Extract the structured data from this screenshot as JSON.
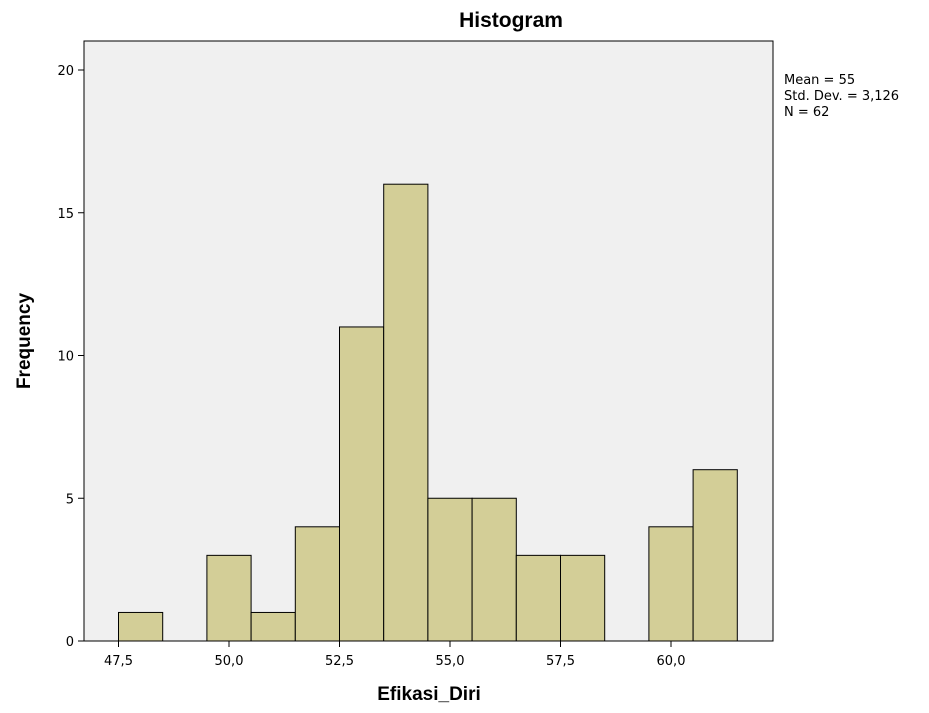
{
  "chart_data": {
    "type": "bar",
    "title": "Histogram",
    "xlabel": "Efikasi_Diri",
    "ylabel": "Frequency",
    "xlim": [
      46.5,
      62.5
    ],
    "ylim": [
      0,
      21
    ],
    "bin_width": 1,
    "bins": [
      {
        "x": 48,
        "count": 1
      },
      {
        "x": 50,
        "count": 3
      },
      {
        "x": 51,
        "count": 1
      },
      {
        "x": 52,
        "count": 4
      },
      {
        "x": 53,
        "count": 11
      },
      {
        "x": 54,
        "count": 16
      },
      {
        "x": 55,
        "count": 5
      },
      {
        "x": 56,
        "count": 5
      },
      {
        "x": 57,
        "count": 3
      },
      {
        "x": 58,
        "count": 3
      },
      {
        "x": 60,
        "count": 4
      },
      {
        "x": 61,
        "count": 6
      }
    ],
    "x_ticks": [
      {
        "value": 47.5,
        "label": "47,5"
      },
      {
        "value": 50.0,
        "label": "50,0"
      },
      {
        "value": 52.5,
        "label": "52,5"
      },
      {
        "value": 55.0,
        "label": "55,0"
      },
      {
        "value": 57.5,
        "label": "57,5"
      },
      {
        "value": 60.0,
        "label": "60,0"
      }
    ],
    "y_ticks": [
      {
        "value": 0,
        "label": "0"
      },
      {
        "value": 5,
        "label": "5"
      },
      {
        "value": 10,
        "label": "10"
      },
      {
        "value": 15,
        "label": "15"
      },
      {
        "value": 20,
        "label": "20"
      }
    ],
    "statistics": [
      "Mean = 55",
      "Std. Dev. = 3,126",
      "N = 62"
    ],
    "grid": false,
    "legend": "none",
    "colors": {
      "bar_fill": "#d3ce97",
      "plot_background": "#f0f0f0",
      "outline": "#000000"
    }
  }
}
